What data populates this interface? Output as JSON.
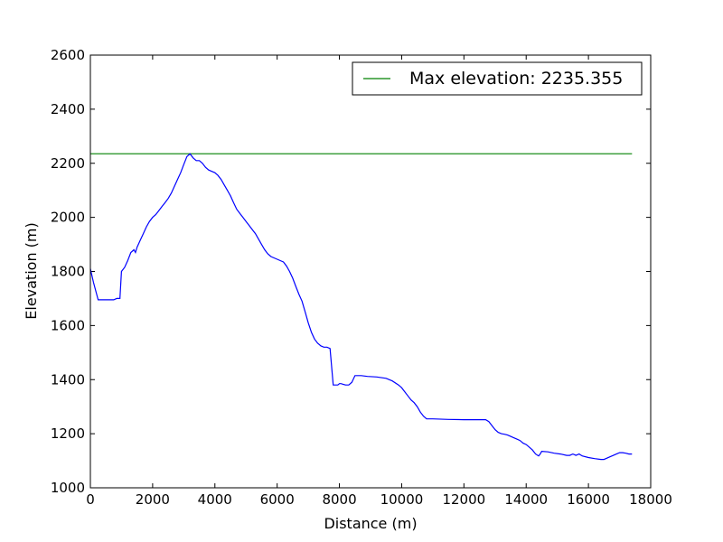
{
  "chart_data": {
    "type": "line",
    "xlabel": "Distance (m)",
    "ylabel": "Elevation (m)",
    "xlim": [
      0,
      18000
    ],
    "ylim": [
      1000,
      2600
    ],
    "xticks": [
      0,
      2000,
      4000,
      6000,
      8000,
      10000,
      12000,
      14000,
      16000,
      18000
    ],
    "yticks": [
      1000,
      1200,
      1400,
      1600,
      1800,
      2000,
      2200,
      2400,
      2600
    ],
    "xtick_labels": [
      "0",
      "2000",
      "4000",
      "6000",
      "8000",
      "10000",
      "12000",
      "14000",
      "16000",
      "18000"
    ],
    "ytick_labels": [
      "1000",
      "1200",
      "1400",
      "1600",
      "1800",
      "2000",
      "2200",
      "2400",
      "2600"
    ],
    "grid": false,
    "legend_position": "top-right",
    "colors": {
      "elevation": "#0000ff",
      "max": "#008000"
    },
    "series": [
      {
        "x": [
          0,
          100,
          250,
          500,
          750,
          850,
          900,
          950,
          1000,
          1100,
          1200,
          1300,
          1400,
          1450,
          1500,
          1600,
          1700,
          1800,
          1900,
          2000,
          2100,
          2200,
          2300,
          2400,
          2500,
          2600,
          2700,
          2800,
          2900,
          3000,
          3100,
          3200,
          3300,
          3400,
          3500,
          3600,
          3700,
          3800,
          3900,
          4000,
          4100,
          4200,
          4300,
          4400,
          4500,
          4600,
          4700,
          4800,
          4900,
          5000,
          5100,
          5200,
          5300,
          5400,
          5500,
          5600,
          5700,
          5800,
          5900,
          6000,
          6100,
          6200,
          6300,
          6400,
          6500,
          6600,
          6700,
          6800,
          6900,
          7000,
          7100,
          7200,
          7300,
          7400,
          7500,
          7600,
          7700,
          7800,
          7900,
          7950,
          8000,
          8050,
          8200,
          8300,
          8400,
          8500,
          8600,
          8700,
          8900,
          9200,
          9500,
          9700,
          9900,
          10000,
          10100,
          10200,
          10300,
          10400,
          10500,
          10600,
          10700,
          10800,
          11000,
          11500,
          12000,
          12500,
          12700,
          12800,
          12900,
          13000,
          13100,
          13200,
          13300,
          13400,
          13500,
          13600,
          13700,
          13800,
          13900,
          14000,
          14100,
          14200,
          14300,
          14400,
          14450,
          14500,
          14700,
          14900,
          15100,
          15300,
          15400,
          15500,
          15600,
          15700,
          15800,
          16000,
          16200,
          16400,
          16500,
          16600,
          16700,
          16800,
          16900,
          17000,
          17100,
          17200,
          17300,
          17400
        ],
        "y": [
          1810,
          1760,
          1695,
          1695,
          1695,
          1700,
          1700,
          1700,
          1800,
          1815,
          1840,
          1870,
          1880,
          1870,
          1890,
          1915,
          1940,
          1965,
          1985,
          2000,
          2010,
          2025,
          2040,
          2055,
          2070,
          2090,
          2115,
          2140,
          2165,
          2195,
          2225,
          2235,
          2220,
          2210,
          2210,
          2200,
          2185,
          2175,
          2170,
          2165,
          2155,
          2140,
          2120,
          2100,
          2080,
          2055,
          2030,
          2015,
          2000,
          1985,
          1970,
          1955,
          1940,
          1920,
          1900,
          1880,
          1865,
          1855,
          1850,
          1845,
          1840,
          1835,
          1820,
          1800,
          1775,
          1745,
          1715,
          1690,
          1650,
          1610,
          1575,
          1550,
          1535,
          1525,
          1520,
          1520,
          1515,
          1380,
          1380,
          1380,
          1385,
          1385,
          1380,
          1380,
          1390,
          1415,
          1415,
          1415,
          1412,
          1410,
          1405,
          1395,
          1380,
          1370,
          1355,
          1340,
          1325,
          1315,
          1300,
          1280,
          1265,
          1255,
          1255,
          1253,
          1252,
          1252,
          1252,
          1245,
          1230,
          1215,
          1205,
          1200,
          1198,
          1195,
          1190,
          1185,
          1180,
          1175,
          1165,
          1160,
          1150,
          1140,
          1125,
          1118,
          1125,
          1135,
          1133,
          1128,
          1125,
          1120,
          1120,
          1125,
          1120,
          1125,
          1118,
          1112,
          1108,
          1105,
          1105,
          1110,
          1115,
          1120,
          1125,
          1130,
          1130,
          1128,
          1125,
          1125
        ]
      }
    ],
    "max_line": {
      "y": 2235.355,
      "x_range": [
        0,
        17400
      ]
    },
    "legend": {
      "label": "Max elevation: 2235.355"
    }
  }
}
